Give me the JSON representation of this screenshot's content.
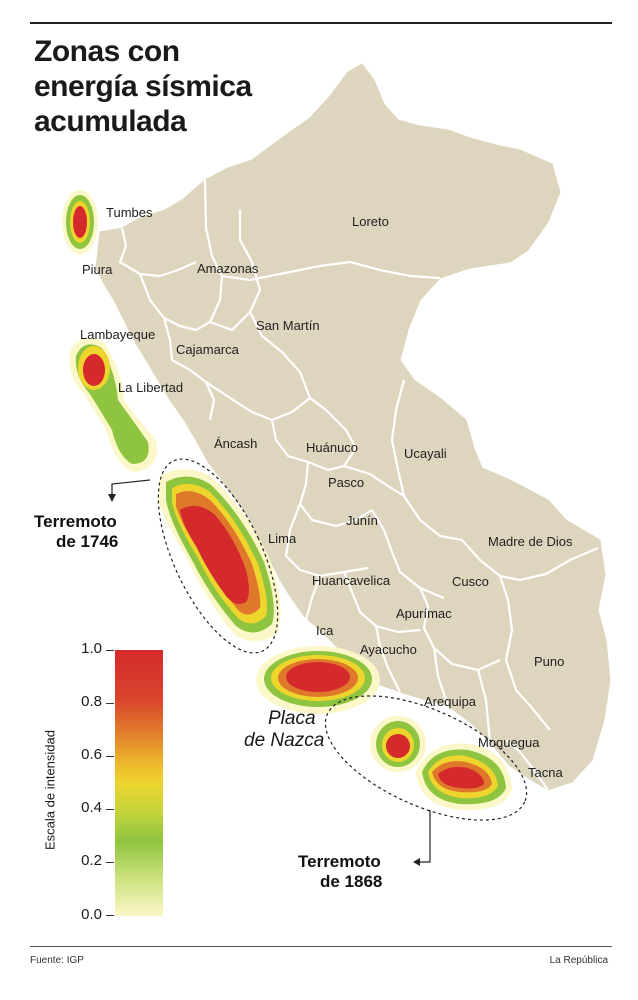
{
  "title_lines": [
    "Zonas con",
    "energía sísmica",
    "acumulada"
  ],
  "regions": {
    "tumbes": "Tumbes",
    "piura": "Piura",
    "lambayeque": "Lambayeque",
    "la_libertad": "La Libertad",
    "cajamarca": "Cajamarca",
    "amazonas": "Amazonas",
    "loreto": "Loreto",
    "san_martin": "San Martín",
    "ancash": "Áncash",
    "huanuco": "Huánuco",
    "ucayali": "Ucayali",
    "pasco": "Pasco",
    "junin": "Junín",
    "lima": "Lima",
    "madre_de_dios": "Madre de Dios",
    "huancavelica": "Huancavelica",
    "cusco": "Cusco",
    "ica": "Ica",
    "apurimac": "Apurímac",
    "ayacucho": "Ayacucho",
    "puno": "Puno",
    "arequipa": "Arequipa",
    "moquegua": "Moquegua",
    "tacna": "Tacna"
  },
  "earthquakes": {
    "e1746_line1": "Terremoto",
    "e1746_line2": "de 1746",
    "e1868_line1": "Terremoto",
    "e1868_line2": "de 1868"
  },
  "plate_line1": "Placa",
  "plate_line2": "de Nazca",
  "legend": {
    "title": "Escala de intensidad",
    "ticks": [
      "1.0",
      "0.8",
      "0.6",
      "0.4",
      "0.2",
      "0.0"
    ]
  },
  "source": "Fuente: IGP",
  "credit": "La República",
  "colors": {
    "land": "#ddd5bd",
    "border": "#ffffff",
    "high": "#d42a2b",
    "mid": "#eed52e",
    "low": "#8ec43f",
    "halo": "#fbf7c8"
  }
}
